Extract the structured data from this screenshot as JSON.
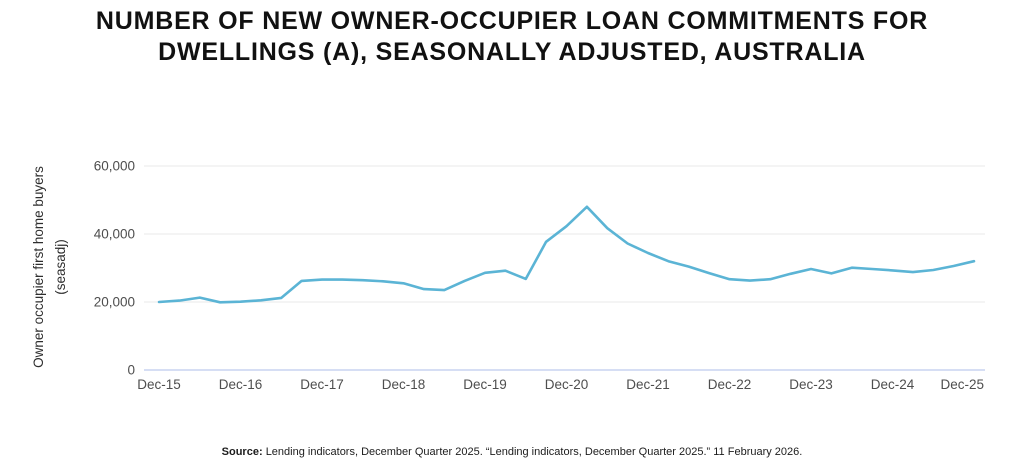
{
  "page": {
    "title_line1": "NUMBER OF NEW OWNER-OCCUPIER LOAN COMMITMENTS FOR",
    "title_line2": "DWELLINGS (A), SEASONALLY ADJUSTED, AUSTRALIA",
    "source_label": "Source:",
    "source_text": "Lending indicators, December Quarter 2025. “Lending indicators, December Quarter 2025.” 11 February 2026."
  },
  "chart_data": {
    "type": "line",
    "title": "Number of new owner-occupier loan commitments for dwellings (a), seasonally adjusted, Australia",
    "ylabel_line1": "Owner occupier first home buyers",
    "ylabel_line2": "(seasadj)",
    "xlabel": "",
    "x": [
      "Dec-15",
      "Mar-16",
      "Jun-16",
      "Sep-16",
      "Dec-16",
      "Mar-17",
      "Jun-17",
      "Sep-17",
      "Dec-17",
      "Mar-18",
      "Jun-18",
      "Sep-18",
      "Dec-18",
      "Mar-19",
      "Jun-19",
      "Sep-19",
      "Dec-19",
      "Mar-20",
      "Jun-20",
      "Sep-20",
      "Dec-20",
      "Mar-21",
      "Jun-21",
      "Sep-21",
      "Dec-21",
      "Mar-22",
      "Jun-22",
      "Sep-22",
      "Dec-22",
      "Mar-23",
      "Jun-23",
      "Sep-23",
      "Dec-23",
      "Mar-24",
      "Jun-24",
      "Sep-24",
      "Dec-24",
      "Mar-25",
      "Jun-25",
      "Sep-25",
      "Dec-25"
    ],
    "values": [
      20000,
      20400,
      21300,
      19900,
      20100,
      20500,
      21200,
      26200,
      26600,
      26600,
      26400,
      26100,
      25500,
      23800,
      23500,
      26200,
      28600,
      29200,
      26800,
      37700,
      42300,
      48000,
      41700,
      37200,
      34400,
      32000,
      30400,
      28500,
      26700,
      26300,
      26700,
      28300,
      29700,
      28400,
      30100,
      29700,
      29300,
      28800,
      29400,
      30600,
      32000
    ],
    "x_tick_labels": [
      "Dec-15",
      "Dec-16",
      "Dec-17",
      "Dec-18",
      "Dec-19",
      "Dec-20",
      "Dec-21",
      "Dec-22",
      "Dec-23",
      "Dec-24",
      "Dec-25"
    ],
    "x_tick_interval": 4,
    "y_ticks": [
      0,
      20000,
      40000,
      60000
    ],
    "y_tick_labels": [
      "0",
      "20,000",
      "40,000",
      "60,000"
    ],
    "ylim": [
      0,
      66000
    ],
    "grid": true,
    "legend": false,
    "line_color": "#5bb4d5",
    "grid_color": "#e9e9e9",
    "axis_color": "#c9d3f0"
  }
}
